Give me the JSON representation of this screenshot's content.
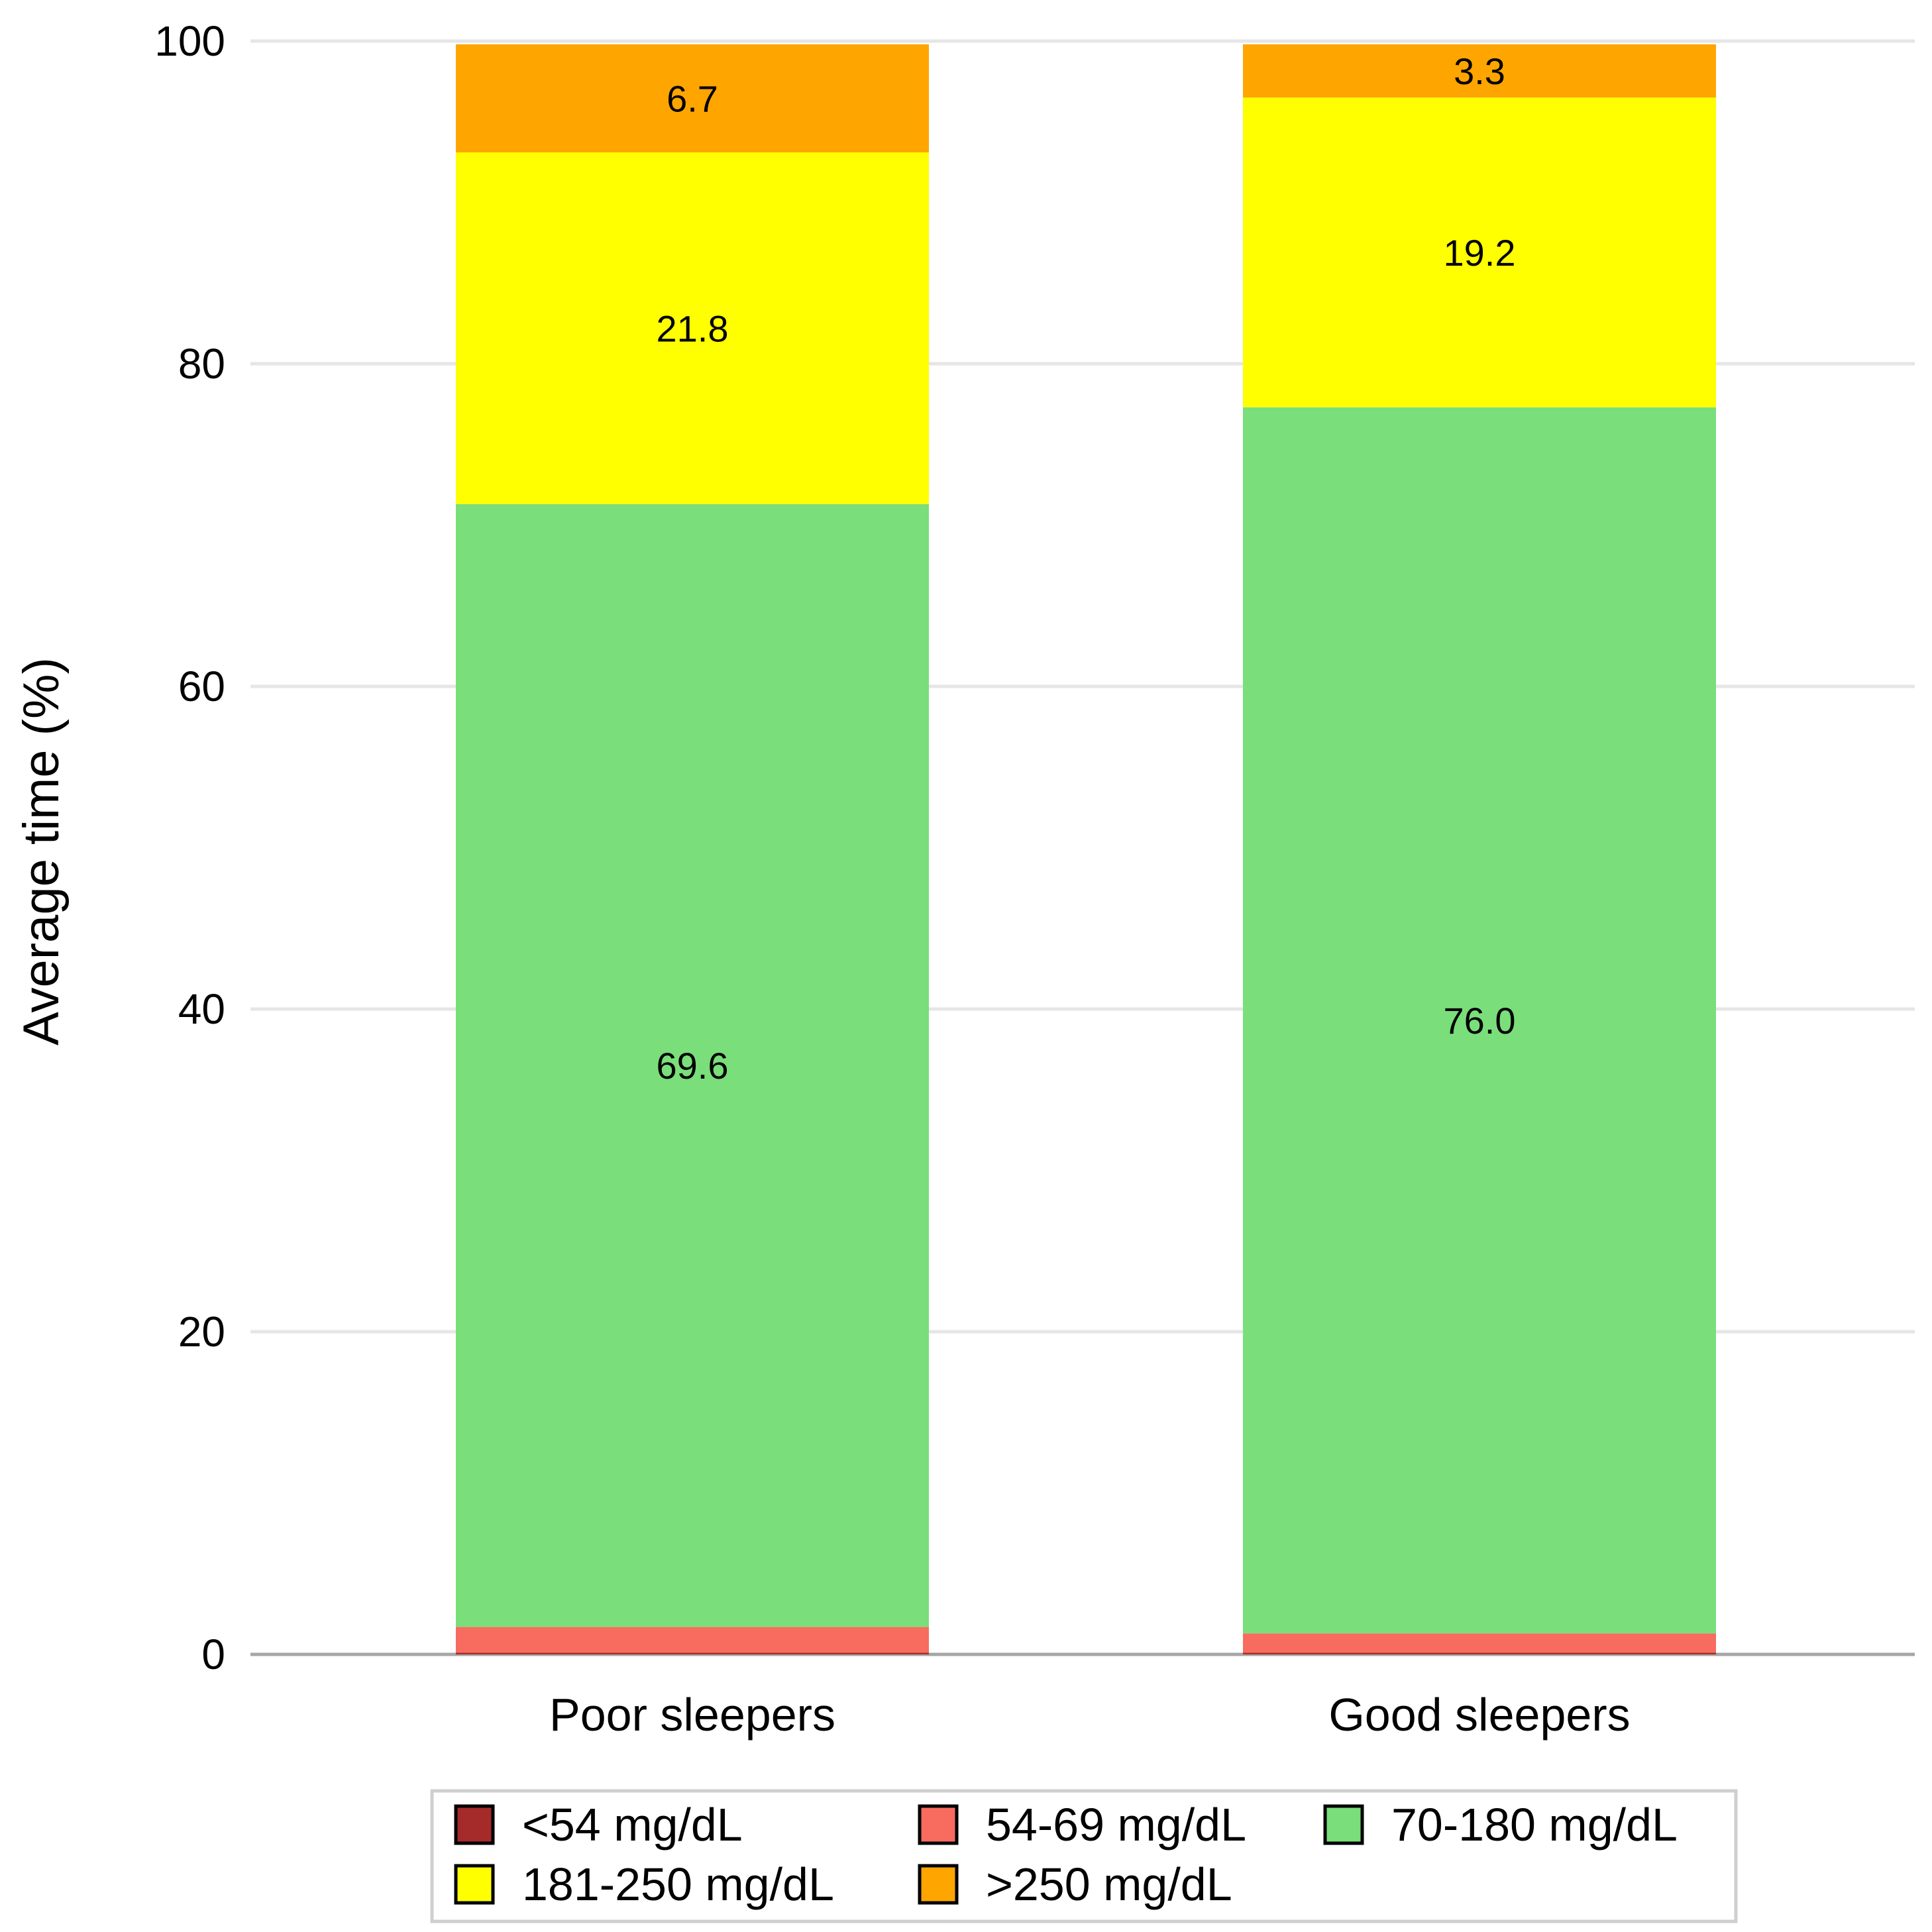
{
  "chart_data": {
    "type": "bar",
    "stacked": true,
    "title": "",
    "xlabel": "",
    "ylabel": "Average time (%)",
    "ylim": [
      0,
      100
    ],
    "yticks": [
      0,
      20,
      40,
      60,
      80,
      100
    ],
    "grid": true,
    "legend_position": "bottom",
    "categories": [
      "Poor sleepers",
      "Good sleepers"
    ],
    "series": [
      {
        "name": "<54 mg/dL",
        "color": "#a52a2a",
        "values": [
          0.1,
          0.1
        ],
        "labels": [
          "",
          ""
        ]
      },
      {
        "name": "54-69 mg/dL",
        "color": "#f86b5f",
        "values": [
          1.6,
          1.2
        ],
        "labels": [
          "",
          ""
        ]
      },
      {
        "name": "70-180 mg/dL",
        "color": "#7ade7a",
        "values": [
          69.6,
          76.0
        ],
        "labels": [
          "69.6",
          "76.0"
        ]
      },
      {
        "name": "181-250 mg/dL",
        "color": "#ffff00",
        "values": [
          21.8,
          19.2
        ],
        "labels": [
          "21.8",
          "19.2"
        ]
      },
      {
        "name": ">250 mg/dL",
        "color": "#ffa500",
        "values": [
          6.7,
          3.3
        ],
        "labels": [
          "6.7",
          "3.3"
        ]
      }
    ]
  }
}
